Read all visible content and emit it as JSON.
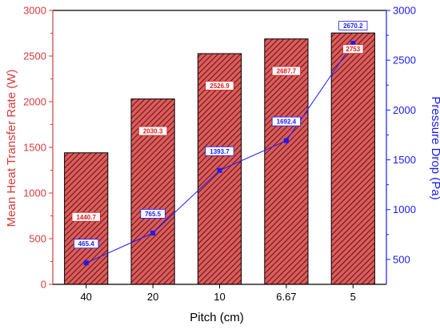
{
  "chart_data": {
    "type": "bar",
    "xlabel": "Pitch (cm)",
    "categories": [
      "40",
      "20",
      "10",
      "6.67",
      "5"
    ],
    "ylabel_left": "Mean Heat Transfer Rate (W)",
    "ylabel_right": "Pressure Drop (Pa)",
    "ylim_left": [
      0,
      3000
    ],
    "ylim_right": [
      250,
      3000
    ],
    "yticks_left": [
      0,
      500,
      1000,
      1500,
      2000,
      2500,
      3000
    ],
    "yticks_right": [
      500,
      1000,
      1500,
      2000,
      2500,
      3000
    ],
    "grid": false,
    "series": [
      {
        "type": "bar",
        "axis": "left",
        "values": [
          1440.7,
          2030.3,
          2526.9,
          2687.7,
          2753
        ],
        "labels": [
          "1440.7",
          "2030.3",
          "2526.9",
          "2687.7",
          "2753"
        ]
      },
      {
        "type": "line",
        "axis": "right",
        "values": [
          465.4,
          765.5,
          1393.7,
          1692.4,
          2670.2
        ],
        "labels": [
          "465.4",
          "765.5",
          "1393.7",
          "1692.4",
          "2670.2"
        ]
      }
    ],
    "colors": {
      "bar_fill": "#e05a5a",
      "bar_hatch": "#3a1212",
      "line": "#1a1aff",
      "left_axis": "#d43c3c",
      "right_axis": "#1a1aff",
      "bar_label": "#e01a1a",
      "line_label": "#1a1aff"
    }
  }
}
